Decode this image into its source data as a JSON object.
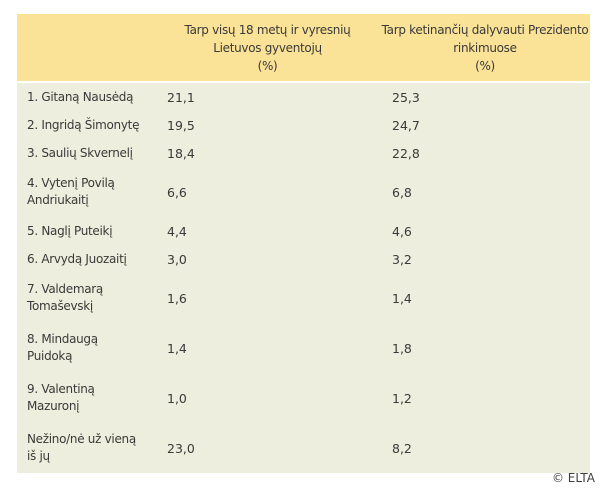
{
  "colors": {
    "header_bg": "#FAE296",
    "body_bg": "#EDEEDD",
    "text": "#3a3a3a"
  },
  "table": {
    "header": {
      "col_all_adults": "Tarp visų 18 metų ir vyresnių\nLietuvos gyventojų\n(%)",
      "col_intending_voters": "Tarp ketinančių dalyvauti Prezidento\nrinkimuose\n(%)"
    },
    "rows": [
      {
        "name": "1. Gitaną Nausėdą",
        "all": "21,1",
        "intend": "25,3"
      },
      {
        "name": "2. Ingridą Šimonytę",
        "all": "19,5",
        "intend": "24,7"
      },
      {
        "name": "3. Saulių Skvernelį",
        "all": "18,4",
        "intend": "22,8"
      },
      {
        "name": "4. Vytenį Povilą\nAndriukaitį",
        "all": "6,6",
        "intend": "6,8"
      },
      {
        "name": "5. Naglį Puteikį",
        "all": "4,4",
        "intend": "4,6"
      },
      {
        "name": "6. Arvydą Juozaitį",
        "all": "3,0",
        "intend": "3,2"
      },
      {
        "name": "7. Valdemarą\nTomaševskį",
        "all": "1,6",
        "intend": "1,4"
      },
      {
        "name": "8. Mindaugą\nPuidoką",
        "all": "1,4",
        "intend": "1,8"
      },
      {
        "name": "9. Valentiną\nMazuronį",
        "all": "1,0",
        "intend": "1,2"
      },
      {
        "name": "Nežino/nė už vieną\niš jų",
        "all": "23,0",
        "intend": "8,2"
      }
    ]
  },
  "footer": {
    "credit": "© ELTA"
  },
  "chart_data": {
    "type": "table",
    "columns": [
      "",
      "Tarp visų 18 metų ir vyresnių Lietuvos gyventojų (%)",
      "Tarp ketinančių dalyvauti Prezidento rinkimuose (%)"
    ],
    "rows": [
      [
        "1. Gitaną Nausėdą",
        21.1,
        25.3
      ],
      [
        "2. Ingridą Šimonytę",
        19.5,
        24.7
      ],
      [
        "3. Saulių Skvernelį",
        18.4,
        22.8
      ],
      [
        "4. Vytenį Povilą Andriukaitį",
        6.6,
        6.8
      ],
      [
        "5. Naglį Puteikį",
        4.4,
        4.6
      ],
      [
        "6. Arvydą Juozaitį",
        3.0,
        3.2
      ],
      [
        "7. Valdemarą Tomaševskį",
        1.6,
        1.4
      ],
      [
        "8. Mindaugą Puidoką",
        1.4,
        1.8
      ],
      [
        "9. Valentiną Mazuronį",
        1.0,
        1.2
      ],
      [
        "Nežino/nė už vieną iš jų",
        23.0,
        8.2
      ]
    ],
    "source": "© ELTA",
    "layout": {
      "header_bg": "#FAE296",
      "body_bg": "#EDEEDD",
      "grid": false
    }
  }
}
